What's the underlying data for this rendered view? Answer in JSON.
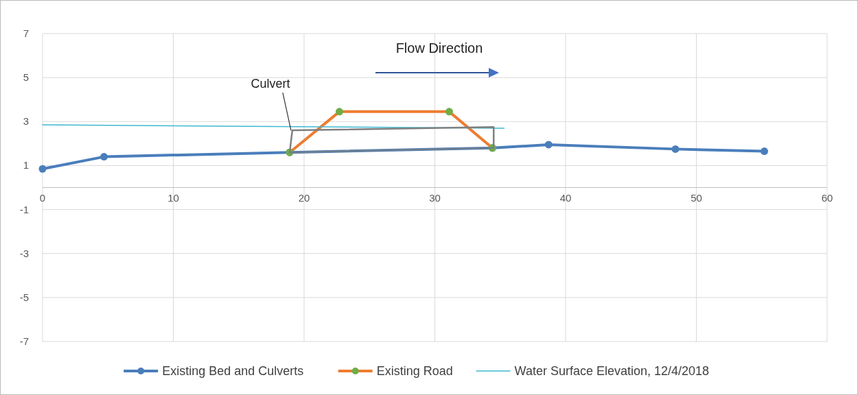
{
  "chart_data": {
    "type": "line",
    "series": [
      {
        "name": "Existing Bed and Culverts",
        "color": "#4a7ebb",
        "marker": "circle",
        "x": [
          0,
          4.7,
          18.9,
          34.4,
          38.7,
          48.4,
          55.2
        ],
        "values": [
          0.85,
          1.4,
          1.6,
          1.8,
          1.95,
          1.75,
          1.65
        ]
      },
      {
        "name": "Existing Road",
        "color": "#ed7d31",
        "marker": "circle",
        "x": [
          18.9,
          22.7,
          31.1,
          34.4
        ],
        "values": [
          1.6,
          3.45,
          3.45,
          1.8
        ]
      },
      {
        "name": "Water Surface Elevation, 12/4/2018",
        "color": "#3fb8d0",
        "marker": "none",
        "x": [
          0,
          35.3
        ],
        "values": [
          2.85,
          2.7
        ]
      },
      {
        "color": "#7f7f7f",
        "marker": "none",
        "x": [
          18.9,
          19.1,
          34.5,
          34.5
        ],
        "values": [
          1.6,
          2.6,
          2.75,
          1.8
        ]
      },
      {
        "color": "#6f7f8f",
        "marker": "none",
        "x": [
          18.9,
          34.5
        ],
        "values": [
          1.6,
          1.8
        ]
      }
    ],
    "xlim": [
      0,
      60
    ],
    "xticks": [
      0,
      10,
      20,
      30,
      40,
      50,
      60
    ],
    "ylim": [
      -7,
      7
    ],
    "yticks": [
      -7,
      -5,
      -3,
      -1,
      1,
      3,
      5,
      7
    ],
    "grid": true,
    "legend": "bottom",
    "annotations": [
      {
        "text": "Culvert",
        "x": 19,
        "y": 2.6
      },
      "Flow Direction"
    ]
  }
}
